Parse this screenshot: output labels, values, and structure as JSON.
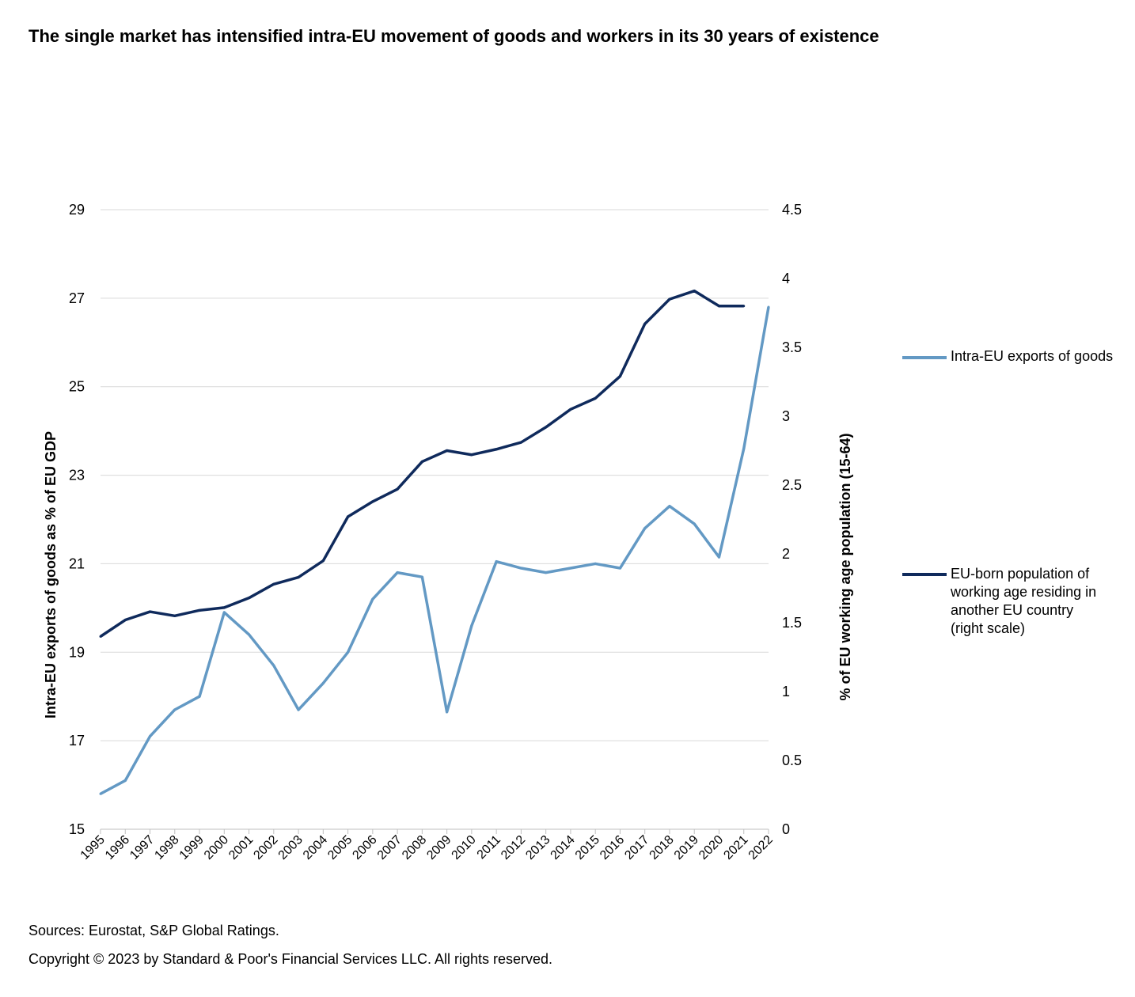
{
  "chart_data": {
    "type": "line",
    "title": "The single market has intensified intra-EU movement of goods and workers in its 30 years of existence",
    "x": [
      "1995",
      "1996",
      "1997",
      "1998",
      "1999",
      "2000",
      "2001",
      "2002",
      "2003",
      "2004",
      "2005",
      "2006",
      "2007",
      "2008",
      "2009",
      "2010",
      "2011",
      "2012",
      "2013",
      "2014",
      "2015",
      "2016",
      "2017",
      "2018",
      "2019",
      "2020",
      "2021",
      "2022"
    ],
    "ylabel": "Intra-EU exports of goods as % of EU GDP",
    "y2label": "% of EU working age population (15-64)",
    "ylim": [
      15,
      29
    ],
    "yticks": [
      "15",
      "17",
      "19",
      "21",
      "23",
      "25",
      "27",
      "29"
    ],
    "y2lim": [
      0,
      4.5
    ],
    "y2ticks": [
      "0",
      "0.5",
      "1",
      "1.5",
      "2",
      "2.5",
      "3",
      "3.5",
      "4",
      "4.5"
    ],
    "grid": true,
    "legend_placement": "right",
    "series": [
      {
        "name": "Intra-EU exports of goods",
        "axis": "left",
        "color": "#6399c4",
        "values": [
          15.8,
          16.1,
          17.1,
          17.7,
          18.0,
          19.9,
          19.4,
          18.7,
          17.7,
          18.3,
          19.0,
          20.2,
          20.8,
          20.7,
          17.65,
          19.6,
          21.05,
          20.9,
          20.8,
          20.9,
          21.0,
          20.9,
          21.8,
          22.3,
          21.9,
          21.15,
          23.6,
          26.8
        ]
      },
      {
        "name": "EU-born population of working age residing in another EU country (right scale)",
        "axis": "right",
        "color": "#0f2a5c",
        "values": [
          1.4,
          1.52,
          1.58,
          1.55,
          1.59,
          1.61,
          1.68,
          1.78,
          1.83,
          1.95,
          2.27,
          2.38,
          2.47,
          2.67,
          2.75,
          2.72,
          2.76,
          2.81,
          2.92,
          3.05,
          3.13,
          3.29,
          3.67,
          3.85,
          3.91,
          3.8,
          3.8,
          null
        ]
      }
    ]
  },
  "footer": {
    "sources": "Sources: Eurostat, S&P Global Ratings.",
    "copyright": "Copyright © 2023 by Standard & Poor's Financial Services LLC. All rights reserved."
  }
}
